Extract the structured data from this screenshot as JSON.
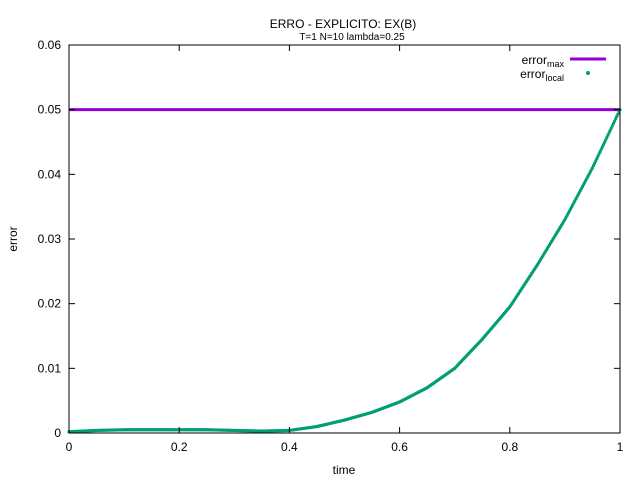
{
  "chart_data": {
    "type": "scatter",
    "title": "ERRO - EXPLICITO: EX(B)",
    "subtitle": "T=1 N=10 lambda=0.25",
    "xlabel": "time",
    "ylabel": "error",
    "xlim": [
      0,
      1
    ],
    "ylim": [
      0,
      0.06
    ],
    "xticks": [
      "0",
      "0.2",
      "0.4",
      "0.6",
      "0.8",
      "1"
    ],
    "yticks": [
      "0",
      "0.01",
      "0.02",
      "0.03",
      "0.04",
      "0.05",
      "0.06"
    ],
    "grid": false,
    "legend_position": "top-right",
    "series": [
      {
        "name": "error",
        "name_sub": "max",
        "kind": "line",
        "color": "#9400d3",
        "x": [
          0,
          1
        ],
        "y": [
          0.05,
          0.05
        ]
      },
      {
        "name": "error",
        "name_sub": "local",
        "kind": "points",
        "color": "#009e73",
        "x": [
          0,
          0.05,
          0.1,
          0.15,
          0.2,
          0.25,
          0.3,
          0.35,
          0.4,
          0.45,
          0.5,
          0.55,
          0.6,
          0.65,
          0.7,
          0.75,
          0.8,
          0.85,
          0.9,
          0.95,
          1
        ],
        "y": [
          0.0002,
          0.0004,
          0.0005,
          0.0005,
          0.0005,
          0.0005,
          0.0004,
          0.0003,
          0.0004,
          0.001,
          0.002,
          0.0032,
          0.0048,
          0.007,
          0.01,
          0.0145,
          0.0195,
          0.026,
          0.033,
          0.041,
          0.05
        ]
      }
    ]
  }
}
